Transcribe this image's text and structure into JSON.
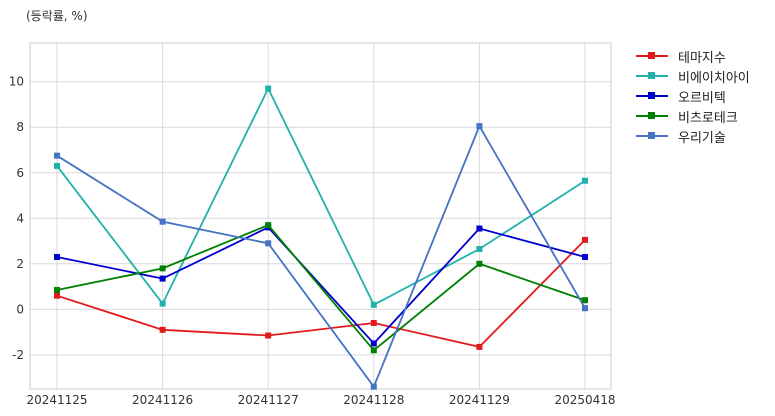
{
  "chart_data": {
    "type": "line",
    "unit_label": "(등락률, %)",
    "categories": [
      "20241125",
      "20241126",
      "20241127",
      "20241128",
      "20241129",
      "20250418"
    ],
    "yticks": [
      -2,
      0,
      2,
      4,
      6,
      8,
      10
    ],
    "ylim": [
      -3.5,
      11.7
    ],
    "grid": true,
    "legend_position": "right",
    "series": [
      {
        "name": "테마지수",
        "color": "#e31a1c",
        "values": [
          0.6,
          -0.9,
          -1.15,
          -0.6,
          -1.65,
          3.05
        ]
      },
      {
        "name": "비에이치아이",
        "color": "#20b2aa",
        "values": [
          6.3,
          0.25,
          9.7,
          0.2,
          2.65,
          5.65
        ]
      },
      {
        "name": "오르비텍",
        "color": "#0000cd",
        "values": [
          2.3,
          1.35,
          3.6,
          -1.5,
          3.55,
          2.3
        ]
      },
      {
        "name": "비츠로테크",
        "color": "#008000",
        "values": [
          0.85,
          1.8,
          3.7,
          -1.8,
          2.0,
          0.4
        ]
      },
      {
        "name": "우리기술",
        "color": "#4472c4",
        "values": [
          6.75,
          3.85,
          2.9,
          -3.4,
          8.05,
          0.05
        ]
      }
    ]
  }
}
